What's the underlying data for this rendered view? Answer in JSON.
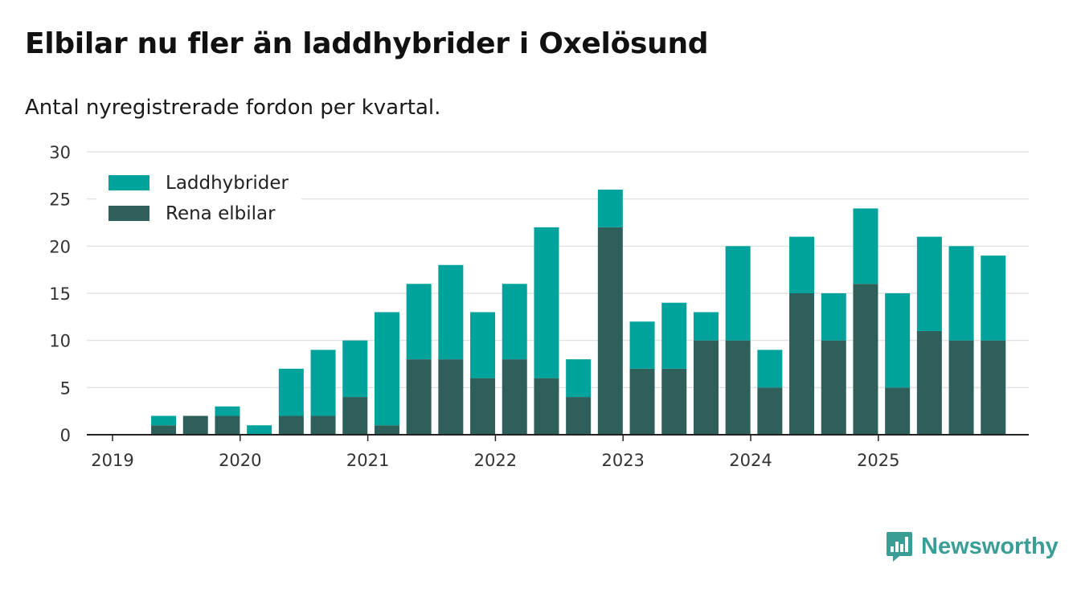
{
  "header": {
    "title": "Elbilar nu fler än laddhybrider i Oxelösund",
    "subtitle": "Antal nyregistrerade fordon per kvartal."
  },
  "brand": {
    "name": "Newsworthy",
    "icon": "newsworthy-logo-icon"
  },
  "colors": {
    "laddhybrider": "#00a39b",
    "rena_elbilar": "#2f5f5a",
    "grid": "#dddddd",
    "axis": "#222222",
    "brand": "#3a9d96"
  },
  "chart_data": {
    "type": "bar",
    "stacked": true,
    "title": "Elbilar nu fler än laddhybrider i Oxelösund",
    "subtitle": "Antal nyregistrerade fordon per kvartal.",
    "xlabel": "",
    "ylabel": "",
    "ylim": [
      0,
      30
    ],
    "yticks": [
      0,
      5,
      10,
      15,
      20,
      25,
      30
    ],
    "xticks": [
      "2019",
      "2020",
      "2021",
      "2022",
      "2023",
      "2024",
      "2025"
    ],
    "legend_position": "top-left",
    "grid": true,
    "categories": [
      "2019 Q1",
      "2019 Q2",
      "2019 Q3",
      "2019 Q4",
      "2020 Q1",
      "2020 Q2",
      "2020 Q3",
      "2020 Q4",
      "2021 Q1",
      "2021 Q2",
      "2021 Q3",
      "2021 Q4",
      "2022 Q1",
      "2022 Q2",
      "2022 Q3",
      "2022 Q4",
      "2023 Q1",
      "2023 Q2",
      "2023 Q3",
      "2023 Q4",
      "2024 Q1",
      "2024 Q2",
      "2024 Q3",
      "2024 Q4",
      "2025 Q1",
      "2025 Q2",
      "2025 Q3",
      "2025 Q4"
    ],
    "series": [
      {
        "name": "Rena elbilar",
        "values": [
          0,
          1,
          2,
          2,
          0,
          2,
          2,
          4,
          1,
          8,
          8,
          6,
          8,
          6,
          4,
          22,
          7,
          7,
          10,
          10,
          5,
          15,
          10,
          16,
          5,
          11,
          10,
          10
        ]
      },
      {
        "name": "Laddhybrider",
        "values": [
          0,
          1,
          0,
          1,
          1,
          5,
          7,
          6,
          12,
          8,
          10,
          7,
          8,
          16,
          4,
          4,
          5,
          7,
          3,
          10,
          4,
          6,
          5,
          8,
          10,
          10,
          10,
          9
        ]
      }
    ]
  }
}
